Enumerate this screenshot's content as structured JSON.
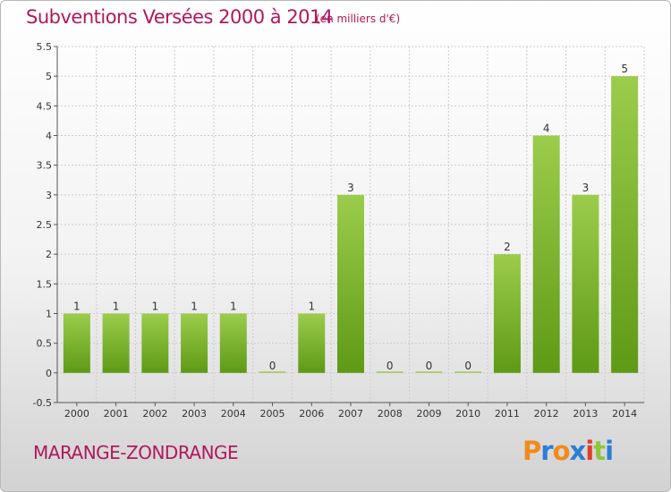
{
  "header": {
    "title": "Subventions Versées 2000 à 2014",
    "unit_note": "(en milliers d'€)"
  },
  "footer": {
    "city": "MARANGE-ZONDRANGE",
    "logo_letters": [
      "P",
      "r",
      "o",
      "x",
      "i",
      "t",
      "i"
    ],
    "logo_colors": [
      "#f28a1a",
      "#2a7fd4",
      "#f28a1a",
      "#2a7fd4",
      "#e63a2a",
      "#8dc63f",
      "#2a7fd4"
    ]
  },
  "colors": {
    "bar_light": "#9ccc4c",
    "bar_dark": "#5e9a16",
    "title": "#b0185c",
    "grid": "#cccccc"
  },
  "chart_data": {
    "type": "bar",
    "title": "Subventions Versées 2000 à 2014",
    "subtitle": "(en milliers d'€)",
    "categories": [
      "2000",
      "2001",
      "2002",
      "2003",
      "2004",
      "2005",
      "2006",
      "2007",
      "2008",
      "2009",
      "2010",
      "2011",
      "2012",
      "2013",
      "2014"
    ],
    "values": [
      1,
      1,
      1,
      1,
      1,
      0,
      1,
      3,
      0,
      0,
      0,
      2,
      4,
      3,
      5
    ],
    "data_labels": [
      "1",
      "1",
      "1",
      "1",
      "1",
      "0",
      "1",
      "3",
      "0",
      "0",
      "0",
      "2",
      "4",
      "3",
      "5"
    ],
    "ylim": [
      -0.5,
      5.5
    ],
    "yticks": [
      -0.5,
      0,
      0.5,
      1,
      1.5,
      2,
      2.5,
      3,
      3.5,
      4,
      4.5,
      5,
      5.5
    ],
    "ytick_labels": [
      "-0.5",
      "0",
      "0.5",
      "1",
      "1.5",
      "2",
      "2.5",
      "3",
      "3.5",
      "4",
      "4.5",
      "5",
      "5.5"
    ],
    "grid": true,
    "legend": "none"
  }
}
